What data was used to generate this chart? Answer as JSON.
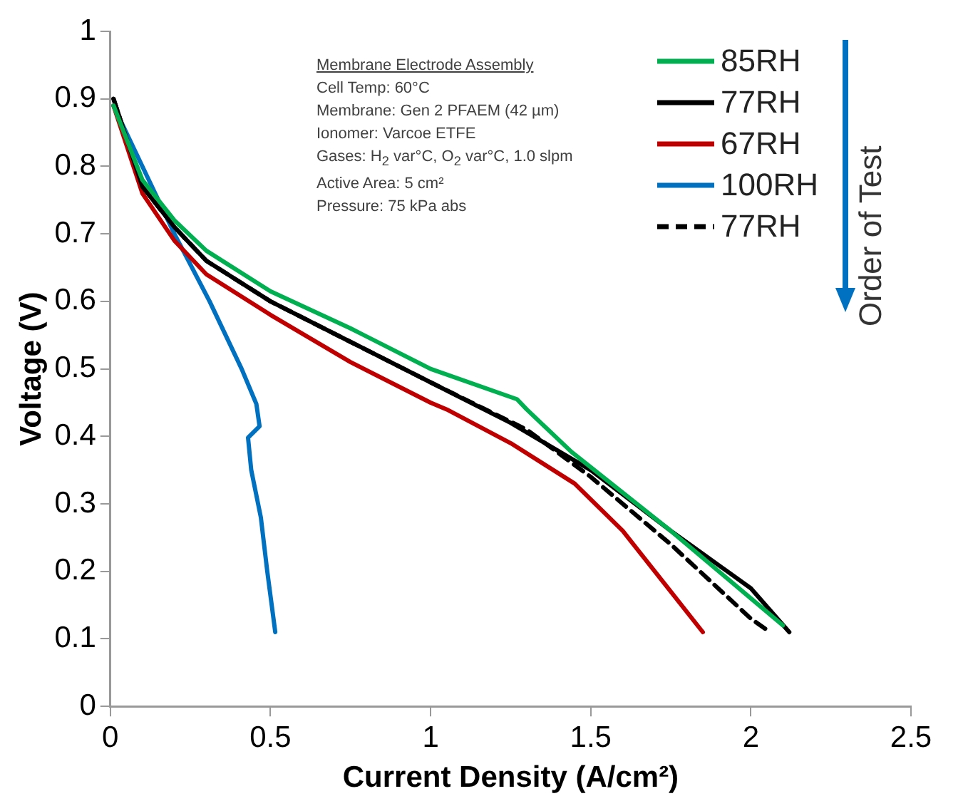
{
  "chart_data": {
    "type": "line",
    "xlabel": "Current Density (A/cm²)",
    "ylabel": "Voltage (V)",
    "xlim": [
      0,
      2.5
    ],
    "xticks": [
      0,
      0.5,
      1,
      1.5,
      2,
      2.5
    ],
    "ylim": [
      0,
      1
    ],
    "yticks": [
      0,
      0.1,
      0.2,
      0.3,
      0.4,
      0.5,
      0.6,
      0.7,
      0.8,
      0.9,
      1
    ],
    "grid": false,
    "legend": "top right",
    "marker": "none",
    "line_style": "solid",
    "annotations": [
      "Membrane Electrode Assembly",
      "Cell Temp: 60°C",
      "Membrane: Gen 2 PFAEM (42 µm)",
      "Ionomer: Varcoe ETFE",
      "Gases: H$_{2}$ var°C, O$_{2}$ var°C, 1.0 slpm",
      "Active Area: 5 cm²",
      "Pressure: 75 kPa abs",
      "Order of Test"
    ],
    "series": [
      {
        "name": "85RH",
        "color": "#00b050",
        "x": [
          0.01,
          0.1,
          0.2,
          0.3,
          0.5,
          0.75,
          1.0,
          1.27,
          1.3,
          1.44,
          1.75,
          2.0,
          2.1
        ],
        "values": [
          0.89,
          0.78,
          0.72,
          0.675,
          0.615,
          0.56,
          0.5,
          0.455,
          0.44,
          0.377,
          0.26,
          0.16,
          0.12
        ]
      },
      {
        "name": "77RH",
        "color": "#000000",
        "x": [
          0.01,
          0.1,
          0.2,
          0.3,
          0.5,
          0.75,
          1.0,
          1.25,
          1.5,
          1.75,
          2.0,
          2.12
        ],
        "values": [
          0.9,
          0.77,
          0.71,
          0.66,
          0.6,
          0.54,
          0.48,
          0.42,
          0.35,
          0.26,
          0.175,
          0.11
        ]
      },
      {
        "name": "67RH",
        "color": "#c00000",
        "x": [
          0.01,
          0.1,
          0.2,
          0.3,
          0.5,
          0.75,
          1.0,
          1.05,
          1.25,
          1.45,
          1.6,
          1.75,
          1.85
        ],
        "values": [
          0.89,
          0.76,
          0.69,
          0.64,
          0.58,
          0.51,
          0.45,
          0.44,
          0.39,
          0.33,
          0.26,
          0.17,
          0.11
        ]
      },
      {
        "name": "100RH",
        "color": "#0070c0",
        "x": [
          0.01,
          0.08,
          0.2,
          0.31,
          0.41,
          0.456,
          0.466,
          0.43,
          0.44,
          0.47,
          0.49,
          0.515
        ],
        "values": [
          0.89,
          0.82,
          0.7,
          0.6,
          0.5,
          0.448,
          0.415,
          0.398,
          0.35,
          0.28,
          0.2,
          0.11
        ]
      },
      {
        "name": "77RH",
        "color": "#000000",
        "line_style": "dashed",
        "x": [
          0.01,
          0.1,
          0.2,
          0.3,
          0.5,
          0.75,
          1.0,
          1.3,
          1.5,
          1.75,
          2.0,
          2.06
        ],
        "values": [
          0.9,
          0.77,
          0.71,
          0.66,
          0.6,
          0.54,
          0.48,
          0.41,
          0.34,
          0.24,
          0.13,
          0.11
        ]
      }
    ]
  }
}
